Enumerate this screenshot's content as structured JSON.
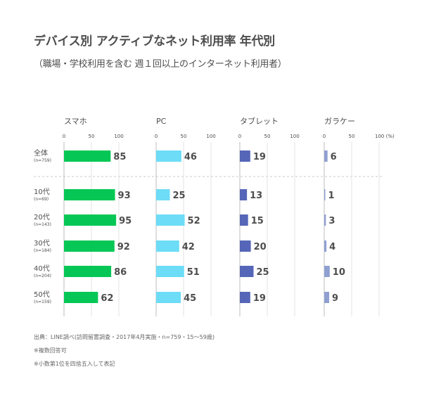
{
  "title": "デバイス別 アクティブなネット利用率 年代別",
  "subtitle": "（職場・学校利用を含む 週１回以上のインターネット利用者）",
  "notes": [
    "出典：LINE調べ(訪問留置調査・2017年4月実施・n=759・15～59歳)",
    "※複数回答可",
    "※小数第1位を四捨五入して表記"
  ],
  "chart_data": {
    "type": "bar",
    "orientation": "horizontal",
    "axis_unit": "(%)",
    "xlim": [
      0,
      100
    ],
    "ticks": [
      "0",
      "50",
      "100"
    ],
    "categories": [
      {
        "label": "全体",
        "n": "(n=759)"
      },
      {
        "label": "10代",
        "n": "(n=69)"
      },
      {
        "label": "20代",
        "n": "(n=143)"
      },
      {
        "label": "30代",
        "n": "(n=184)"
      },
      {
        "label": "40代",
        "n": "(n=204)"
      },
      {
        "label": "50代",
        "n": "(n=159)"
      }
    ],
    "series": [
      {
        "name": "スマホ",
        "color": "#06c755",
        "values": [
          85,
          93,
          95,
          92,
          86,
          62
        ]
      },
      {
        "name": "PC",
        "color": "#6ddcf7",
        "values": [
          46,
          25,
          52,
          42,
          51,
          45
        ]
      },
      {
        "name": "タブレット",
        "color": "#5566b8",
        "values": [
          19,
          13,
          15,
          20,
          25,
          19
        ]
      },
      {
        "name": "ガラケー",
        "color": "#8f9fd0",
        "values": [
          6,
          1,
          3,
          4,
          10,
          9
        ]
      }
    ]
  }
}
